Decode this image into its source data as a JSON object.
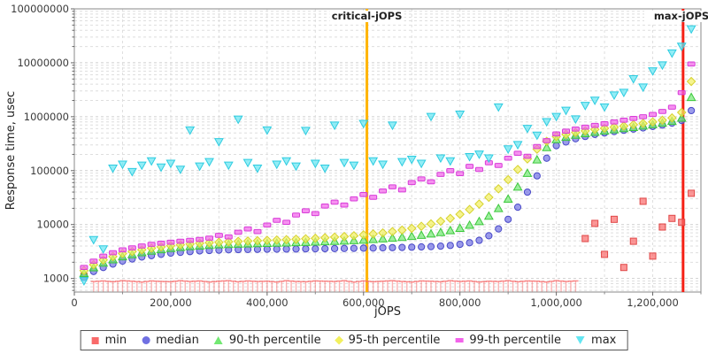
{
  "chart_data": {
    "type": "scatter",
    "title": "",
    "xlabel": "jOPS",
    "ylabel": "Response time, usec",
    "x_scale": "linear",
    "y_scale": "log",
    "xlim": [
      0,
      1300000
    ],
    "ylim": [
      560,
      100000000
    ],
    "grid": true,
    "x_ticks": {
      "values": [
        0,
        200000,
        400000,
        600000,
        800000,
        1000000,
        1200000
      ],
      "labels": [
        "0",
        "200,000",
        "400,000",
        "600,000",
        "800,000",
        "1,000,000",
        "1,200,000"
      ]
    },
    "y_ticks": {
      "values": [
        1000,
        10000,
        100000,
        1000000,
        10000000,
        100000000
      ],
      "labels": [
        "1000",
        "10000",
        "100000",
        "1000000",
        "10000000",
        "100000000"
      ]
    },
    "vlines": [
      {
        "name": "critical-jOPS",
        "x": 607000,
        "color": "#ffb400"
      },
      {
        "name": "max-jOPS",
        "x": 1263000,
        "color": "#f52015"
      }
    ],
    "x": [
      20000,
      40000,
      60000,
      80000,
      100000,
      120000,
      140000,
      160000,
      180000,
      200000,
      220000,
      240000,
      260000,
      280000,
      300000,
      320000,
      340000,
      360000,
      380000,
      400000,
      420000,
      440000,
      460000,
      480000,
      500000,
      520000,
      540000,
      560000,
      580000,
      600000,
      620000,
      640000,
      660000,
      680000,
      700000,
      720000,
      740000,
      760000,
      780000,
      800000,
      820000,
      840000,
      860000,
      880000,
      900000,
      920000,
      940000,
      960000,
      980000,
      1000000,
      1020000,
      1040000,
      1060000,
      1080000,
      1100000,
      1120000,
      1140000,
      1160000,
      1180000,
      1200000,
      1220000,
      1240000,
      1260000,
      1280000
    ],
    "series": [
      {
        "name": "min",
        "marker": "square",
        "color": "#f96a6a",
        "edge": "#e04848",
        "values": [
          1100,
          880,
          900,
          870,
          910,
          890,
          860,
          900,
          880,
          870,
          910,
          880,
          900,
          860,
          890,
          910,
          870,
          900,
          880,
          890,
          860,
          910,
          880,
          870,
          900,
          890,
          880,
          910,
          860,
          900,
          870,
          890,
          910,
          880,
          860,
          900,
          890,
          870,
          910,
          880,
          900,
          860,
          890,
          880,
          910,
          870,
          900,
          890,
          860,
          910,
          880,
          900,
          5500,
          10500,
          2800,
          12500,
          1600,
          4900,
          27000,
          2600,
          9000,
          13000,
          11000,
          38000
        ]
      },
      {
        "name": "median",
        "marker": "circle",
        "color": "#7070e2",
        "edge": "#4848c8",
        "values": [
          1050,
          1350,
          1600,
          1850,
          2100,
          2300,
          2500,
          2650,
          2800,
          2950,
          3050,
          3150,
          3250,
          3300,
          3350,
          3400,
          3430,
          3450,
          3470,
          3490,
          3500,
          3510,
          3520,
          3540,
          3550,
          3570,
          3580,
          3600,
          3620,
          3650,
          3670,
          3700,
          3730,
          3760,
          3800,
          3850,
          3900,
          3980,
          4100,
          4300,
          4600,
          5100,
          6200,
          8300,
          12500,
          21000,
          40000,
          80000,
          170000,
          290000,
          340000,
          390000,
          430000,
          470000,
          500000,
          530000,
          560000,
          590000,
          620000,
          660000,
          700000,
          760000,
          850000,
          1300000
        ]
      },
      {
        "name": "90-th percentile",
        "marker": "triangle-up",
        "color": "#72e872",
        "edge": "#3cc83c",
        "values": [
          1250,
          1600,
          1950,
          2250,
          2550,
          2800,
          3050,
          3250,
          3450,
          3650,
          3800,
          3950,
          4050,
          4150,
          4250,
          4320,
          4380,
          4430,
          4480,
          4520,
          4570,
          4620,
          4670,
          4720,
          4780,
          4850,
          4920,
          5000,
          5100,
          5200,
          5350,
          5500,
          5650,
          5850,
          6100,
          6400,
          6750,
          7200,
          7800,
          8600,
          9800,
          11500,
          14500,
          20000,
          30000,
          50000,
          90000,
          160000,
          270000,
          380000,
          420000,
          460000,
          490000,
          520000,
          550000,
          580000,
          610000,
          640000,
          680000,
          720000,
          770000,
          830000,
          950000,
          2300000
        ]
      },
      {
        "name": "95-th percentile",
        "marker": "diamond",
        "color": "#f2f05e",
        "edge": "#d6d22e",
        "values": [
          1400,
          1800,
          2200,
          2550,
          2900,
          3150,
          3400,
          3650,
          3850,
          4050,
          4200,
          4350,
          4500,
          4600,
          4700,
          4800,
          4880,
          4950,
          5020,
          5100,
          5170,
          5250,
          5350,
          5450,
          5570,
          5700,
          5850,
          6000,
          6200,
          6450,
          6700,
          7000,
          7400,
          7900,
          8500,
          9300,
          10300,
          11500,
          13000,
          15500,
          19000,
          24000,
          32000,
          46000,
          68000,
          105000,
          165000,
          250000,
          350000,
          430000,
          470000,
          510000,
          545000,
          580000,
          610000,
          640000,
          670000,
          710000,
          750000,
          800000,
          860000,
          950000,
          1200000,
          4500000
        ]
      },
      {
        "name": "99-th percentile",
        "marker": "hbar",
        "color": "#f263ea",
        "edge": "#d83cd8",
        "values": [
          1600,
          2100,
          2600,
          3000,
          3400,
          3700,
          4000,
          4300,
          4500,
          4700,
          4900,
          5100,
          5300,
          5600,
          6300,
          5900,
          7200,
          8300,
          7400,
          9800,
          12000,
          11000,
          15000,
          18000,
          16000,
          22000,
          26000,
          23000,
          30000,
          36000,
          32000,
          42000,
          50000,
          44000,
          60000,
          70000,
          62000,
          85000,
          100000,
          88000,
          120000,
          105000,
          140000,
          125000,
          170000,
          210000,
          185000,
          280000,
          360000,
          480000,
          540000,
          590000,
          640000,
          690000,
          740000,
          800000,
          860000,
          930000,
          1000000,
          1100000,
          1250000,
          1500000,
          2800000,
          9500000
        ]
      },
      {
        "name": "max",
        "marker": "triangle-down",
        "color": "#64e6f2",
        "edge": "#2ecce0",
        "values": [
          900,
          5200,
          3500,
          110000,
          130000,
          95000,
          125000,
          150000,
          115000,
          135000,
          105000,
          560000,
          120000,
          145000,
          340000,
          125000,
          890000,
          140000,
          110000,
          560000,
          130000,
          150000,
          120000,
          550000,
          135000,
          110000,
          690000,
          140000,
          125000,
          740000,
          150000,
          130000,
          690000,
          145000,
          160000,
          135000,
          1000000,
          170000,
          150000,
          1100000,
          180000,
          200000,
          170000,
          1500000,
          250000,
          300000,
          600000,
          450000,
          800000,
          1000000,
          1300000,
          900000,
          1600000,
          2000000,
          1500000,
          2500000,
          2800000,
          5000000,
          3500000,
          7000000,
          9000000,
          15000000,
          20000000,
          42000000
        ]
      }
    ],
    "legend": {
      "position": "bottom-center",
      "entries": [
        "min",
        "median",
        "90-th percentile",
        "95-th percentile",
        "99-th percentile",
        "max"
      ]
    },
    "colors": {
      "grid_major": "#cfcfcf",
      "grid_minor": "#dedede",
      "plot_border": "#8a8a8a",
      "tick_text": "#3a3a3a",
      "critical_line": "#ffb400",
      "max_line": "#f52015"
    }
  }
}
